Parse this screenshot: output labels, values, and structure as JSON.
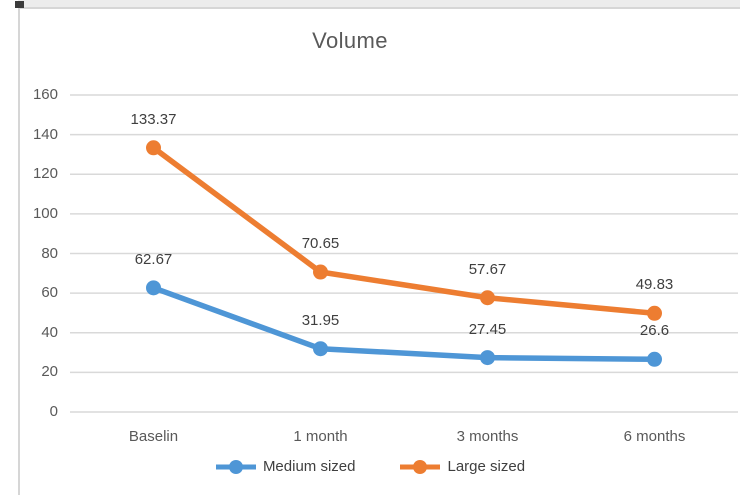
{
  "chart_data": {
    "type": "line",
    "title": "Volume",
    "categories": [
      "Baselin",
      "1 month",
      "3 months",
      "6 months"
    ],
    "series": [
      {
        "name": "Medium sized",
        "color": "#4E96D6",
        "values": [
          62.67,
          31.95,
          27.45,
          26.6
        ]
      },
      {
        "name": "Large sized",
        "color": "#ED7D31",
        "values": [
          133.37,
          70.65,
          57.67,
          49.83
        ]
      }
    ],
    "yticks": [
      0,
      20,
      40,
      60,
      80,
      100,
      120,
      140,
      160
    ],
    "ylim": [
      0,
      160
    ],
    "xlabel": "",
    "ylabel": "",
    "grid": "horizontal",
    "legend_position": "bottom",
    "data_labels": true,
    "marker": "circle"
  },
  "colors": {
    "series_medium": "#4E96D6",
    "series_large": "#ED7D31",
    "gridline": "#D9D9D9",
    "axis_text": "#595959",
    "title_text": "#595959",
    "data_label_text": "#3F3F3F",
    "frame_border": "#D6D6D6",
    "corner_mark": "#3B3B3B",
    "background": "#FFFFFF"
  }
}
